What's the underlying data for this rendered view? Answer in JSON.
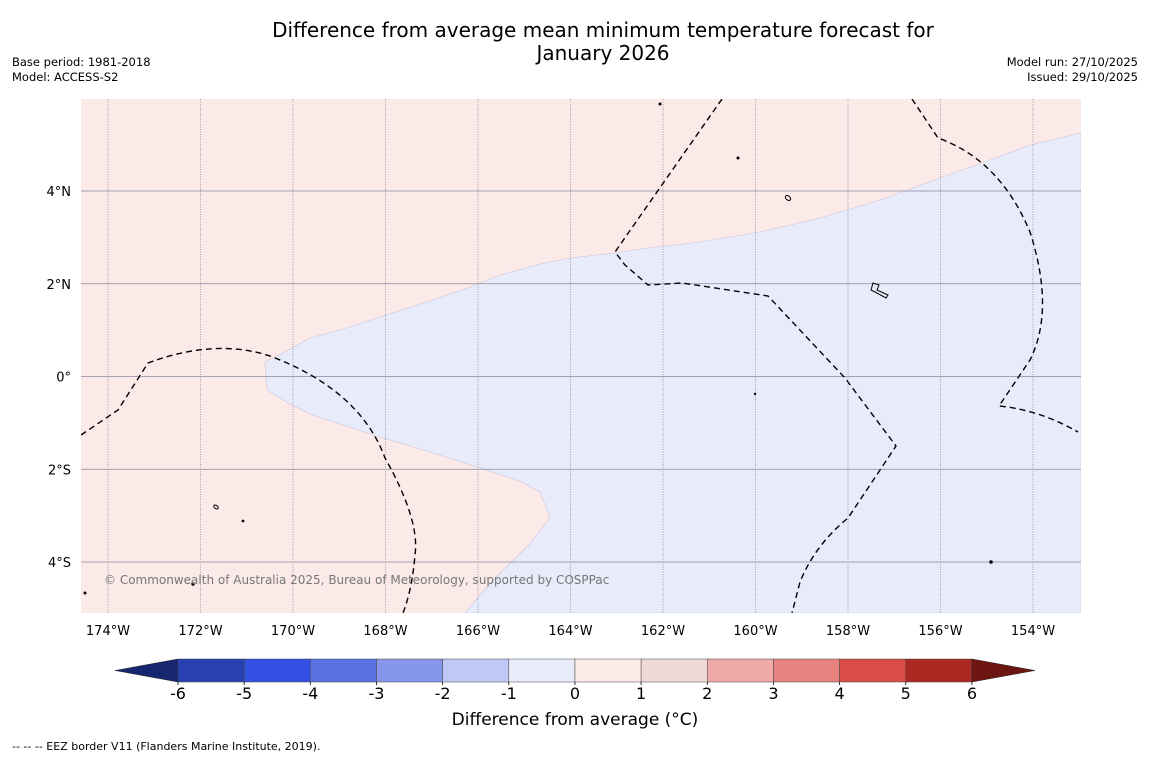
{
  "title_line1": "Difference from average mean minimum temperature forecast for",
  "title_line2": "January 2026",
  "meta_left": {
    "base_period": "Base period: 1981-2018",
    "model": "Model: ACCESS-S2"
  },
  "meta_right": {
    "model_run": "Model run: 27/10/2025",
    "issued": "Issued: 29/10/2025"
  },
  "map": {
    "longitude_labels": [
      "174°W",
      "172°W",
      "170°W",
      "168°W",
      "166°W",
      "164°W",
      "162°W",
      "160°W",
      "158°W",
      "156°W",
      "154°W"
    ],
    "latitude_labels": [
      "4°N",
      "2°N",
      "0°",
      "2°S",
      "4°S"
    ],
    "copyright": "© Commonwealth of Australia 2025, Bureau of Meteorology, supported by COSPPac",
    "region_colors": {
      "warm": "#fbeae8",
      "cool": "#e8ebf9"
    }
  },
  "colorbar": {
    "ticks": [
      "-6",
      "-5",
      "-4",
      "-3",
      "-2",
      "-1",
      "0",
      "1",
      "2",
      "3",
      "4",
      "5",
      "6"
    ],
    "colors": [
      "#16266f",
      "#2741b2",
      "#3150e1",
      "#5a71e4",
      "#8696ea",
      "#c0c8f5",
      "#e8ebf9",
      "#fbeae8",
      "#eed9d6",
      "#eeaaa7",
      "#e6837e",
      "#dc4c46",
      "#ac2822",
      "#6e1612"
    ],
    "label": "Difference from average (°C)"
  },
  "footnote": "--  --  -- EEZ border V11 (Flanders Marine Institute, 2019)."
}
